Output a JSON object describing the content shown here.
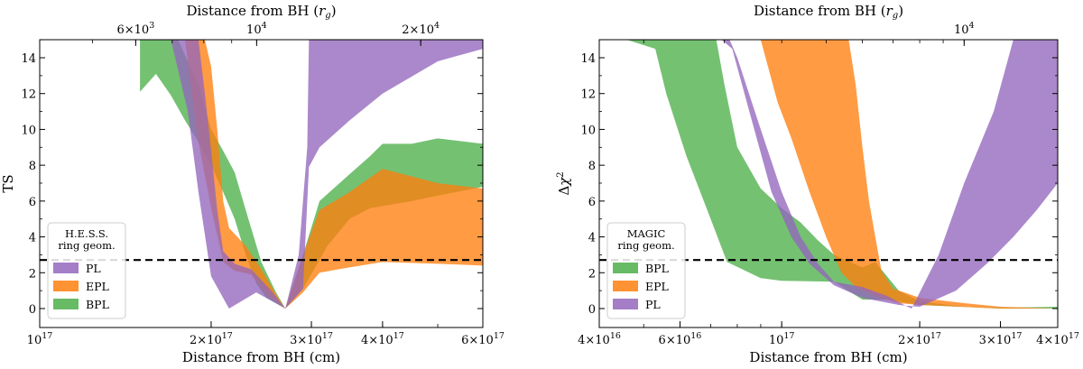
{
  "chart_data": [
    {
      "type": "area",
      "title": "",
      "xlabel": "Distance from BH (cm)",
      "ylabel": "TS",
      "top_xlabel": "Distance from BH (r_g)",
      "xscale": "log",
      "xlim": [
        1e+17,
        6e+17
      ],
      "ylim": [
        -0.5,
        15
      ],
      "xticks": [
        {
          "value": 1e+17,
          "label": "10^17"
        },
        {
          "value": 2e+17,
          "label": "2×10^17"
        },
        {
          "value": 3e+17,
          "label": "3×10^17"
        },
        {
          "value": 4e+17,
          "label": "4×10^17"
        },
        {
          "value": 6e+17,
          "label": "6×10^17"
        }
      ],
      "yticks": [
        0,
        2,
        4,
        6,
        8,
        10,
        12,
        14
      ],
      "top_xlim_rg": [
        4000,
        26000
      ],
      "top_xticks": [
        {
          "value": 6000,
          "label": "6×10^3"
        },
        {
          "value": 10000,
          "label": "10^4"
        },
        {
          "value": 20000,
          "label": "2×10^4"
        }
      ],
      "threshold": {
        "y": 2.71,
        "style": "dashed"
      },
      "legend": {
        "title_lines": [
          "H.E.S.S.",
          "ring geom."
        ],
        "position": "lower-left",
        "entries": [
          "PL",
          "EPL",
          "BPL"
        ]
      },
      "series": [
        {
          "name": "BPL",
          "color": "#4daf4a",
          "lower": [
            [
              1.5e+17,
              12.1
            ],
            [
              1.6e+17,
              13.1
            ],
            [
              1.7e+17,
              11.9
            ],
            [
              1.8e+17,
              10.5
            ],
            [
              1.9e+17,
              9.3
            ],
            [
              2e+17,
              8.0
            ],
            [
              2.1e+17,
              6.5
            ],
            [
              2.2e+17,
              5.0
            ],
            [
              2.3e+17,
              3.0
            ],
            [
              2.4e+17,
              1.4
            ],
            [
              2.5e+17,
              0.6
            ],
            [
              2.7e+17,
              0.0
            ],
            [
              2.9e+17,
              1.1
            ],
            [
              3.2e+17,
              3.5
            ],
            [
              3.5e+17,
              5.0
            ],
            [
              3.8e+17,
              5.6
            ],
            [
              4.5e+17,
              6.0
            ],
            [
              5e+17,
              6.3
            ],
            [
              6e+17,
              6.8
            ]
          ],
          "upper": [
            [
              1.5e+17,
              15.0
            ],
            [
              1.75e+17,
              15.0
            ],
            [
              1.9e+17,
              12.5
            ],
            [
              2e+17,
              10.0
            ],
            [
              2.1e+17,
              8.8
            ],
            [
              2.2e+17,
              7.6
            ],
            [
              2.3e+17,
              5.5
            ],
            [
              2.45e+17,
              2.6
            ],
            [
              2.6e+17,
              0.9
            ],
            [
              2.7e+17,
              0.0
            ],
            [
              2.9e+17,
              3.0
            ],
            [
              3.1e+17,
              6.0
            ],
            [
              3.5e+17,
              7.5
            ],
            [
              3.8e+17,
              8.5
            ],
            [
              4e+17,
              9.2
            ],
            [
              4.5e+17,
              9.2
            ],
            [
              5e+17,
              9.5
            ],
            [
              6e+17,
              9.2
            ]
          ]
        },
        {
          "name": "EPL",
          "color": "#ff7f0e",
          "lower": [
            [
              1.8e+17,
              15.0
            ],
            [
              1.85e+17,
              12.0
            ],
            [
              1.9e+17,
              9.3
            ],
            [
              2e+17,
              5.6
            ],
            [
              2.1e+17,
              2.6
            ],
            [
              2.2e+17,
              2.1
            ],
            [
              2.35e+17,
              1.9
            ],
            [
              2.5e+17,
              0.8
            ],
            [
              2.7e+17,
              0.0
            ],
            [
              2.9e+17,
              0.9
            ],
            [
              3.1e+17,
              2.0
            ],
            [
              3.5e+17,
              2.3
            ],
            [
              4e+17,
              2.6
            ],
            [
              5e+17,
              2.5
            ],
            [
              6e+17,
              2.4
            ]
          ],
          "upper": [
            [
              1.85e+17,
              15.0
            ],
            [
              1.95e+17,
              15.0
            ],
            [
              2e+17,
              13.5
            ],
            [
              2.05e+17,
              10.0
            ],
            [
              2.1e+17,
              6.0
            ],
            [
              2.15e+17,
              4.5
            ],
            [
              2.3e+17,
              3.5
            ],
            [
              2.45e+17,
              2.2
            ],
            [
              2.6e+17,
              0.8
            ],
            [
              2.7e+17,
              0.0
            ],
            [
              2.9e+17,
              3.0
            ],
            [
              3.1e+17,
              5.5
            ],
            [
              3.5e+17,
              6.5
            ],
            [
              4e+17,
              7.8
            ],
            [
              5e+17,
              7.0
            ],
            [
              6e+17,
              6.7
            ]
          ]
        },
        {
          "name": "PL",
          "color": "#9467bd",
          "lower": [
            [
              1.7e+17,
              15.0
            ],
            [
              1.82e+17,
              11.0
            ],
            [
              1.9e+17,
              6.5
            ],
            [
              2e+17,
              1.8
            ],
            [
              2.15e+17,
              0.0
            ],
            [
              2.4e+17,
              0.9
            ],
            [
              2.7e+17,
              0.0
            ],
            [
              2.9e+17,
              1.1
            ],
            [
              3.1e+17,
              2.1
            ],
            [
              3.5e+17,
              2.6
            ],
            [
              4e+17,
              2.7
            ],
            [
              5e+17,
              2.9
            ],
            [
              6e+17,
              2.8
            ]
          ],
          "upper": [
            [
              1.9e+17,
              15.0
            ],
            [
              1.95e+17,
              12.0
            ],
            [
              2e+17,
              8.8
            ],
            [
              2.05e+17,
              5.5
            ],
            [
              2.1e+17,
              3.2
            ],
            [
              2.2e+17,
              2.5
            ],
            [
              2.35e+17,
              2.2
            ],
            [
              2.55e+17,
              1.0
            ],
            [
              2.7e+17,
              0.0
            ],
            [
              2.85e+17,
              3.0
            ],
            [
              2.95e+17,
              9.0
            ],
            [
              2.97e+17,
              15.0
            ],
            [
              6e+17,
              15.0
            ]
          ],
          "lower_extra": [
            [
              2.97e+17,
              7.9
            ],
            [
              3.1e+17,
              9.0
            ],
            [
              3.5e+17,
              10.5
            ],
            [
              4e+17,
              12.0
            ],
            [
              5e+17,
              13.8
            ],
            [
              6e+17,
              14.5
            ]
          ]
        }
      ]
    },
    {
      "type": "area",
      "title": "",
      "xlabel": "Distance from BH (cm)",
      "ylabel": "Δχ²",
      "top_xlabel": "Distance from BH (r_g)",
      "xscale": "log",
      "xlim": [
        4e+16,
        4e+17
      ],
      "ylim": [
        -0.5,
        15
      ],
      "xticks": [
        {
          "value": 4e+16,
          "label": "4×10^16"
        },
        {
          "value": 6e+16,
          "label": "6×10^16"
        },
        {
          "value": 1e+17,
          "label": "10^17"
        },
        {
          "value": 2e+17,
          "label": "2×10^17"
        },
        {
          "value": 3e+17,
          "label": "3×10^17"
        },
        {
          "value": 4e+17,
          "label": "4×10^17"
        }
      ],
      "yticks": [
        0,
        2,
        4,
        6,
        8,
        10,
        12,
        14
      ],
      "top_xlim_rg": [
        1600,
        16000
      ],
      "top_xticks": [
        {
          "value": 10000,
          "label": "10^4"
        }
      ],
      "threshold": {
        "y": 2.71,
        "style": "dashed"
      },
      "legend": {
        "title_lines": [
          "MAGIC",
          "ring geom."
        ],
        "position": "lower-left",
        "entries": [
          "BPL",
          "EPL",
          "PL"
        ]
      },
      "series": [
        {
          "name": "BPL",
          "color": "#4daf4a",
          "upper": [
            [
              4.6e+16,
              15.0
            ],
            [
              7.2e+16,
              15.0
            ],
            [
              7.5e+16,
              12.5
            ],
            [
              8e+16,
              9.0
            ],
            [
              9e+16,
              6.7
            ],
            [
              1e+17,
              5.6
            ],
            [
              1.1e+17,
              4.8
            ],
            [
              1.2e+17,
              3.8
            ],
            [
              1.3e+17,
              3.0
            ],
            [
              1.5e+17,
              2.3
            ],
            [
              1.6e+17,
              2.6
            ],
            [
              1.8e+17,
              1.0
            ],
            [
              2e+17,
              0.4
            ],
            [
              2.5e+17,
              0.1
            ],
            [
              3e+17,
              0.05
            ],
            [
              4e+17,
              0.1
            ]
          ],
          "lower": [
            [
              4.6e+16,
              15.0
            ],
            [
              5.3e+16,
              14.5
            ],
            [
              5.6e+16,
              12.0
            ],
            [
              6.2e+16,
              8.5
            ],
            [
              7e+16,
              5.0
            ],
            [
              7.6e+16,
              2.6
            ],
            [
              9e+16,
              1.7
            ],
            [
              1e+17,
              1.55
            ],
            [
              1.3e+17,
              1.5
            ],
            [
              1.5e+17,
              0.5
            ],
            [
              1.7e+17,
              0.5
            ],
            [
              2e+17,
              0.2
            ],
            [
              3e+17,
              0.0
            ],
            [
              4e+17,
              0.0
            ]
          ]
        },
        {
          "name": "EPL",
          "color": "#ff7f0e",
          "upper": [
            [
              9e+16,
              15.0
            ],
            [
              1.4e+17,
              15.0
            ],
            [
              1.45e+17,
              12.5
            ],
            [
              1.5e+17,
              9.0
            ],
            [
              1.55e+17,
              6.0
            ],
            [
              1.6e+17,
              4.0
            ],
            [
              1.65e+17,
              2.1
            ],
            [
              1.75e+17,
              1.1
            ],
            [
              1.85e+17,
              0.9
            ],
            [
              2e+17,
              0.6
            ],
            [
              2.5e+17,
              0.3
            ],
            [
              3e+17,
              0.1
            ],
            [
              4e+17,
              0.0
            ]
          ],
          "lower": [
            [
              9e+16,
              15.0
            ],
            [
              9.8e+16,
              11.5
            ],
            [
              1.05e+17,
              9.5
            ],
            [
              1.15e+17,
              6.5
            ],
            [
              1.25e+17,
              4.0
            ],
            [
              1.35e+17,
              2.0
            ],
            [
              1.45e+17,
              1.2
            ],
            [
              1.6e+17,
              0.7
            ],
            [
              1.8e+17,
              0.3
            ],
            [
              2e+17,
              0.2
            ],
            [
              3e+17,
              0.0
            ],
            [
              4e+17,
              0.0
            ]
          ]
        },
        {
          "name": "PL",
          "color": "#9467bd",
          "upper": [
            [
              7.7e+16,
              15.0
            ],
            [
              8e+16,
              14.0
            ],
            [
              9e+16,
              10.0
            ],
            [
              1e+17,
              6.5
            ],
            [
              1.1e+17,
              4.0
            ],
            [
              1.2e+17,
              2.5
            ],
            [
              1.3e+17,
              1.5
            ],
            [
              1.5e+17,
              1.2
            ],
            [
              1.7e+17,
              0.7
            ],
            [
              1.85e+17,
              0.2
            ],
            [
              1.92e+17,
              0.0
            ],
            [
              2.2e+17,
              3.0
            ],
            [
              2.5e+17,
              7.0
            ],
            [
              2.9e+17,
              11.0
            ],
            [
              3.2e+17,
              15.0
            ]
          ],
          "lower": [
            [
              7.4e+16,
              15.0
            ],
            [
              7.8e+16,
              14.5
            ],
            [
              8.5e+16,
              11.0
            ],
            [
              9.5e+16,
              6.5
            ],
            [
              1.05e+17,
              4.0
            ],
            [
              1.15e+17,
              2.5
            ],
            [
              1.3e+17,
              1.3
            ],
            [
              1.5e+17,
              0.6
            ],
            [
              1.8e+17,
              0.2
            ],
            [
              2e+17,
              0.1
            ],
            [
              2.4e+17,
              1.0
            ],
            [
              2.8e+17,
              2.5
            ],
            [
              3.2e+17,
              4.0
            ],
            [
              3.6e+17,
              5.5
            ],
            [
              4e+17,
              7.0
            ],
            [
              4e+17,
              15.0
            ]
          ]
        }
      ]
    }
  ]
}
